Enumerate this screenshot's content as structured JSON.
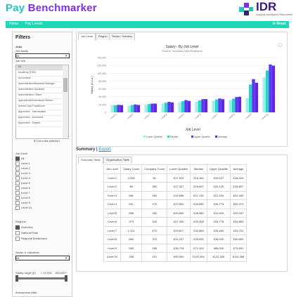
{
  "app": {
    "title_part1": "Pay ",
    "title_part2": "Benchmarker",
    "logo_text": "IDR",
    "logo_sub": "Insights    Intelligent Resources"
  },
  "nav": {
    "items": [
      "Home",
      "Pay Levels"
    ],
    "reset_label": "⟳ Reset"
  },
  "sidebar": {
    "title": "Filters",
    "jobs_label": "Jobs",
    "job_family_label": "Job family",
    "job_family_value": "All",
    "job_role_label": "Job role",
    "job_role_value": "All",
    "list_items": [
      "All",
      "Academy (TOD)",
      "Accountant",
      "Administration/Business Manager",
      "Administration Assistant",
      "Administration Officer",
      "Agricultural/Horticultural Worker",
      "Animal Care Practitioner",
      "Apprentice - Intermediate",
      "Apprentice - Advanced",
      "Apprentice - Degree"
    ],
    "roles_selected_note": "87 job roles selected",
    "job_level_label": "Job Level",
    "job_levels": [
      {
        "label": "All",
        "checked": true
      },
      {
        "label": "Level 1",
        "checked": false
      },
      {
        "label": "Level 2",
        "checked": false
      },
      {
        "label": "Level 3",
        "checked": false
      },
      {
        "label": "Level 4",
        "checked": false
      },
      {
        "label": "Level 5",
        "checked": false
      },
      {
        "label": "Level 6",
        "checked": false
      },
      {
        "label": "Level 7",
        "checked": false
      },
      {
        "label": "Level 8",
        "checked": false
      },
      {
        "label": "Level 9",
        "checked": false
      },
      {
        "label": "Level 10",
        "checked": false
      }
    ],
    "regions_label": "Regions",
    "regions": [
      {
        "label": "Overview",
        "checked": true
      },
      {
        "label": "National Rate",
        "checked": false
      },
      {
        "label": "Regional Breakdown",
        "checked": false
      }
    ],
    "sector_label": "Sector & Industries",
    "sector_value": "All",
    "salary_label": "Salary range (£)",
    "salary_min": "< 10,000",
    "salary_max": "180,000+",
    "anon_label": "Anonymous data"
  },
  "main": {
    "tabs": [
      "Job Level",
      "Region",
      "Sector / Industry"
    ],
    "summary_label": "Summary | ",
    "export_label": "Export",
    "summary_tabs": [
      "Summary Table",
      "Organisation Table"
    ]
  },
  "colors": {
    "teal": "#1dd7b9",
    "purple": "#7b2ff0",
    "lower_q": "#9ef0e8",
    "median": "#27d3c6",
    "upper_q": "#5a3cf0",
    "average": "#6a22e6"
  },
  "chart_data": {
    "type": "bar",
    "title": "Salary : By Job Level",
    "subtitle": "Source: Incomes Data Research",
    "xlabel": "Job Level",
    "ylabel": "Salary (£ p.a.)",
    "ylim": [
      0,
      140000
    ],
    "y_ticks": [
      "0",
      "20,000",
      "40,000",
      "60,000",
      "80,000",
      "100,000",
      "120,000",
      "140,000"
    ],
    "categories": [
      "Level 1",
      "Level 2",
      "Level 3",
      "Level 4",
      "Level 5",
      "Level 6",
      "Level 7",
      "Level 8",
      "Level 9",
      "Level 10"
    ],
    "series": [
      {
        "name": "Lower Quartile",
        "color": "#9ef0e8",
        "values": [
          17924,
          17327,
          19698,
          22550,
          25830,
          27400,
          29617,
          31247,
          36719,
          90000
        ]
      },
      {
        "name": "Median",
        "color": "#27d3c6",
        "values": [
          18184,
          18697,
          21132,
          24650,
          28385,
          30308,
          32883,
          35000,
          71124,
          107000
        ]
      },
      {
        "name": "Upper Quartile",
        "color": "#5a3cf0",
        "values": [
          19107,
          20126,
          22294,
          26775,
          31430,
          33778,
          35465,
          39000,
          85000,
          122328
        ]
      },
      {
        "name": "Average",
        "color": "#6a22e6",
        "values": [
          18419,
          18807,
          22409,
          25373,
          29337,
          33853,
          33751,
          39829,
          75651,
          119398
        ]
      }
    ],
    "legend": "bottom"
  },
  "table": {
    "headers": [
      "Job Level",
      "Salary Count",
      "Company Count",
      "Lower Quartile",
      "Median",
      "Upper Quartile",
      "Average"
    ],
    "rows": [
      [
        "Level 1",
        "2,000",
        "81",
        "£17,924",
        "£18,184",
        "£19,107",
        "£18,419"
      ],
      [
        "Level 2",
        "89",
        "360",
        "£17,327",
        "£18,697",
        "£20,126",
        "£18,807"
      ],
      [
        "Level 3",
        "581",
        "350",
        "£19,698",
        "£21,132",
        "£22,294",
        "£22,409"
      ],
      [
        "Level 4",
        "521",
        "270",
        "£22,550",
        "£24,650",
        "£26,775",
        "£25,373"
      ],
      [
        "Level 5",
        "896",
        "280",
        "£25,830",
        "£28,385",
        "£31,430",
        "£29,337"
      ],
      [
        "Level 6",
        "973",
        "343",
        "£27,400",
        "£30,308",
        "£33,778",
        "£33,853"
      ],
      [
        "Level 7",
        "1,101",
        "470",
        "£29,617",
        "£32,883",
        "£35,465",
        "£33,751"
      ],
      [
        "Level 8",
        "864",
        "370",
        "£31,247",
        "£35,000",
        "£39,000",
        "£39,829"
      ],
      [
        "Level 9",
        "583",
        "185",
        "£36,719",
        "£71,124",
        "£85,000",
        "£75,651"
      ],
      [
        "Level 10",
        "206",
        "110",
        "£90,000",
        "£107,000",
        "£122,328",
        "£119,398"
      ]
    ]
  }
}
